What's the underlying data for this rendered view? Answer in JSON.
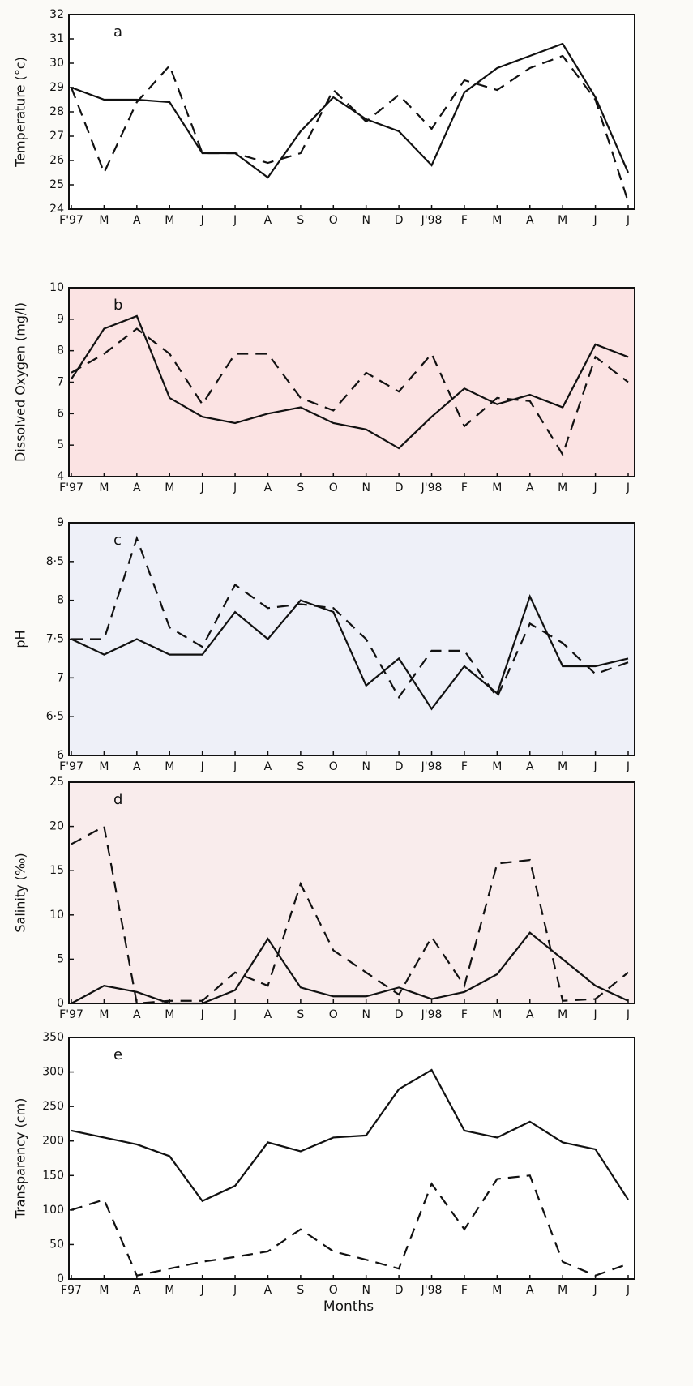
{
  "chart_data": [
    {
      "type": "line",
      "panel_label": "a",
      "ylabel": "Temperature (°c)",
      "categories": [
        "F'97",
        "M",
        "A",
        "M",
        "J",
        "J",
        "A",
        "S",
        "O",
        "N",
        "D",
        "J'98",
        "F",
        "M",
        "A",
        "M",
        "J",
        "J"
      ],
      "series": [
        {
          "color": "#111111",
          "dash": false,
          "values": [
            29.0,
            28.5,
            28.5,
            28.4,
            26.3,
            26.3,
            25.3,
            27.2,
            28.6,
            27.7,
            27.2,
            25.8,
            28.8,
            29.8,
            30.3,
            30.8,
            28.6,
            25.5
          ]
        },
        {
          "color": "#111111",
          "dash": true,
          "values": [
            29.0,
            25.5,
            28.4,
            29.9,
            26.3,
            26.3,
            25.9,
            26.3,
            28.9,
            27.6,
            28.7,
            27.3,
            29.3,
            28.9,
            29.8,
            30.3,
            28.5,
            24.3
          ]
        }
      ],
      "ylim": [
        24,
        32
      ],
      "yticks": [
        24,
        25,
        26,
        27,
        28,
        29,
        30,
        31,
        32
      ],
      "grid": false
    },
    {
      "type": "line",
      "panel_label": "b",
      "ylabel": "Dissolved Oxygen (mg/l)",
      "categories": [
        "F'97",
        "M",
        "A",
        "M",
        "J",
        "J",
        "A",
        "S",
        "O",
        "N",
        "D",
        "J'98",
        "F",
        "M",
        "A",
        "M",
        "J",
        "J"
      ],
      "series": [
        {
          "color": "#111111",
          "dash": false,
          "values": [
            7.1,
            8.7,
            9.1,
            6.5,
            5.9,
            5.7,
            6.0,
            6.2,
            5.7,
            5.5,
            4.9,
            5.9,
            6.8,
            6.3,
            6.6,
            6.2,
            8.2,
            7.8
          ]
        },
        {
          "color": "#111111",
          "dash": true,
          "values": [
            7.3,
            7.9,
            8.7,
            7.9,
            6.3,
            7.9,
            7.9,
            6.5,
            6.1,
            7.3,
            6.7,
            7.9,
            5.6,
            6.5,
            6.4,
            4.7,
            7.8,
            7.0
          ]
        }
      ],
      "ylim": [
        4,
        10
      ],
      "yticks": [
        4,
        5,
        6,
        7,
        8,
        9,
        10
      ],
      "grid": false
    },
    {
      "type": "line",
      "panel_label": "c",
      "ylabel": "pH",
      "categories": [
        "F'97",
        "M",
        "A",
        "M",
        "J",
        "J",
        "A",
        "S",
        "O",
        "N",
        "D",
        "J'98",
        "F",
        "M",
        "A",
        "M",
        "J",
        "J"
      ],
      "series": [
        {
          "color": "#111111",
          "dash": false,
          "values": [
            7.5,
            7.3,
            7.5,
            7.3,
            7.3,
            7.85,
            7.5,
            8.0,
            7.85,
            6.9,
            7.25,
            6.6,
            7.15,
            6.8,
            8.05,
            7.15,
            7.15,
            7.25
          ]
        },
        {
          "color": "#111111",
          "dash": true,
          "values": [
            7.5,
            7.5,
            8.8,
            7.65,
            7.4,
            8.2,
            7.9,
            7.95,
            7.9,
            7.5,
            6.75,
            7.35,
            7.35,
            6.75,
            7.7,
            7.45,
            7.05,
            7.2
          ]
        }
      ],
      "ylim": [
        6,
        9
      ],
      "yticks": [
        6,
        {
          "value": 6.5,
          "label": "6·5"
        },
        7,
        {
          "value": 7.5,
          "label": "7·5"
        },
        8,
        {
          "value": 8.5,
          "label": "8·5"
        },
        9
      ],
      "grid": false
    },
    {
      "type": "line",
      "panel_label": "d",
      "ylabel": "Salinity (‰)",
      "categories": [
        "F'97",
        "M",
        "A",
        "M",
        "J",
        "J",
        "A",
        "S",
        "O",
        "N",
        "D",
        "J'98",
        "F",
        "M",
        "A",
        "M",
        "J",
        "J"
      ],
      "series": [
        {
          "color": "#111111",
          "dash": false,
          "values": [
            0,
            2,
            1.3,
            0,
            0,
            1.5,
            7.3,
            1.8,
            0.8,
            0.8,
            1.8,
            0.5,
            1.3,
            3.3,
            8,
            5,
            2,
            0.3
          ]
        },
        {
          "color": "#111111",
          "dash": true,
          "values": [
            18,
            20,
            0,
            0.3,
            0.3,
            3.5,
            2,
            13.5,
            6,
            3.5,
            1,
            7.5,
            2,
            15.8,
            16.2,
            0.3,
            0.5,
            3.5
          ]
        }
      ],
      "ylim": [
        0,
        25
      ],
      "yticks": [
        0,
        5,
        10,
        15,
        20,
        25
      ],
      "grid": false
    },
    {
      "type": "line",
      "panel_label": "e",
      "ylabel": "Transparency (cm)",
      "xlabel": "Months",
      "categories": [
        "F97",
        "M",
        "A",
        "M",
        "J",
        "J",
        "A",
        "S",
        "O",
        "N",
        "D",
        "J'98",
        "F",
        "M",
        "A",
        "M",
        "J",
        "J"
      ],
      "series": [
        {
          "color": "#111111",
          "dash": false,
          "values": [
            215,
            205,
            195,
            178,
            113,
            135,
            198,
            185,
            205,
            208,
            275,
            303,
            215,
            205,
            228,
            198,
            188,
            115
          ]
        },
        {
          "color": "#111111",
          "dash": true,
          "values": [
            100,
            115,
            5,
            15,
            25,
            32,
            40,
            72,
            40,
            28,
            15,
            138,
            72,
            145,
            150,
            25,
            5,
            22
          ]
        }
      ],
      "ylim": [
        0,
        350
      ],
      "yticks": [
        0,
        50,
        100,
        150,
        200,
        250,
        300,
        350
      ],
      "grid": false
    }
  ]
}
